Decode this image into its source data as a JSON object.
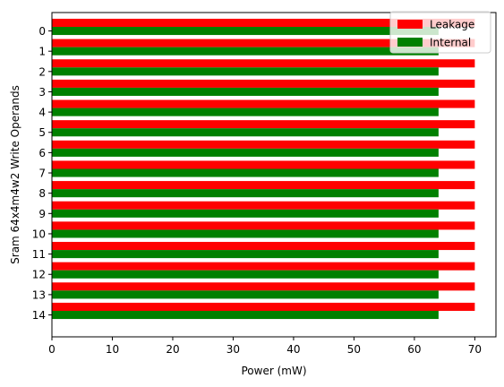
{
  "chart_data": {
    "type": "bar",
    "orientation": "horizontal",
    "categories": [
      "0",
      "1",
      "2",
      "3",
      "4",
      "5",
      "6",
      "7",
      "8",
      "9",
      "10",
      "11",
      "12",
      "13",
      "14"
    ],
    "series": [
      {
        "name": "Leakage",
        "color": "#ff0000",
        "values": [
          70,
          70,
          70,
          70,
          70,
          70,
          70,
          70,
          70,
          70,
          70,
          70,
          70,
          70,
          70
        ]
      },
      {
        "name": "Internal",
        "color": "#008000",
        "values": [
          64,
          64,
          64,
          64,
          64,
          64,
          64,
          64,
          64,
          64,
          64,
          64,
          64,
          64,
          64
        ]
      }
    ],
    "xlabel": "Power (mW)",
    "ylabel": "Sram 64x4m4w2 Write Operands",
    "xlim": [
      0,
      73.5
    ],
    "xticks": [
      "0",
      "10",
      "20",
      "30",
      "40",
      "50",
      "60",
      "70"
    ],
    "legend": "top-right",
    "grid": false
  }
}
